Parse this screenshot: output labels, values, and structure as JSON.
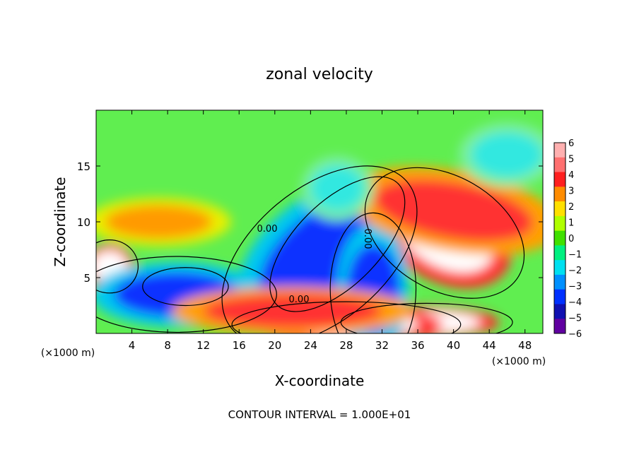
{
  "chart_data": {
    "type": "heatmap",
    "title": "zonal velocity",
    "xlabel": "X-coordinate",
    "ylabel": "Z-coordinate",
    "x_unit_label": "(×1000 m)",
    "x_unit_label_right": "(×1000 m)",
    "footer": "CONTOUR INTERVAL = 1.000E+01",
    "xlim": [
      0,
      50
    ],
    "ylim": [
      0,
      20
    ],
    "xticks": [
      "4",
      "8",
      "12",
      "16",
      "20",
      "24",
      "28",
      "32",
      "36",
      "40",
      "44",
      "48"
    ],
    "xtick_values": [
      4,
      8,
      12,
      16,
      20,
      24,
      28,
      32,
      36,
      40,
      44,
      48
    ],
    "yticks": [
      "5",
      "10",
      "15"
    ],
    "ytick_values": [
      5,
      10,
      15
    ],
    "contour_labels": [
      "0.00",
      "0.00",
      "0.00"
    ],
    "colorbar": {
      "labels": [
        "6",
        "5",
        "4",
        "3",
        "2",
        "1",
        "0",
        "−1",
        "−2",
        "−3",
        "−4",
        "−5",
        "−6"
      ],
      "values": [
        6,
        5,
        4,
        3,
        2,
        1,
        0,
        -1,
        -2,
        -3,
        -4,
        -5,
        -6
      ],
      "colors": [
        "#ffb0b0",
        "#ff7070",
        "#ff2020",
        "#ff8c00",
        "#ffe000",
        "#b0ff00",
        "#40e000",
        "#00f080",
        "#00e0f0",
        "#0090ff",
        "#0030ff",
        "#1010b0",
        "#6000a0"
      ]
    },
    "background_color": "#60ee50",
    "features": [
      {
        "kind": "white",
        "x": 39,
        "y": 9,
        "rx": 6,
        "ry": 3,
        "rot": 30
      },
      {
        "kind": "white",
        "x": 27,
        "y": 8,
        "rx": 6,
        "ry": 2.2,
        "rot": -45
      },
      {
        "kind": "white",
        "x": 10,
        "y": 4.2,
        "rx": 3,
        "ry": 1,
        "rot": 0
      },
      {
        "kind": "white",
        "x": 37,
        "y": 1,
        "rx": 6,
        "ry": 1,
        "rot": 0
      },
      {
        "kind": "white",
        "x": 28,
        "y": 0.8,
        "rx": 8,
        "ry": 1.2,
        "rot": 0
      },
      {
        "kind": "white",
        "x": 1.5,
        "y": 6,
        "rx": 2,
        "ry": 1.4,
        "rot": 0
      },
      {
        "kind": "blue",
        "x": 25,
        "y": 7,
        "rx": 8,
        "ry": 3.5,
        "rot": -40
      },
      {
        "kind": "blue",
        "x": 9,
        "y": 3.5,
        "rx": 7,
        "ry": 2,
        "rot": 0
      },
      {
        "kind": "blue",
        "x": 31,
        "y": 4,
        "rx": 3,
        "ry": 4,
        "rot": 0
      },
      {
        "kind": "red",
        "x": 40,
        "y": 11,
        "rx": 9,
        "ry": 2.5,
        "rot": 10
      },
      {
        "kind": "red",
        "x": 22,
        "y": 2,
        "rx": 10,
        "ry": 1.5,
        "rot": 0
      },
      {
        "kind": "orange",
        "x": 7,
        "y": 10,
        "rx": 6,
        "ry": 1.5,
        "rot": 0
      },
      {
        "kind": "cyan",
        "x": 46,
        "y": 16,
        "rx": 4,
        "ry": 2,
        "rot": 0
      },
      {
        "kind": "cyan",
        "x": 27,
        "y": 13,
        "rx": 3,
        "ry": 2,
        "rot": 0
      }
    ]
  }
}
